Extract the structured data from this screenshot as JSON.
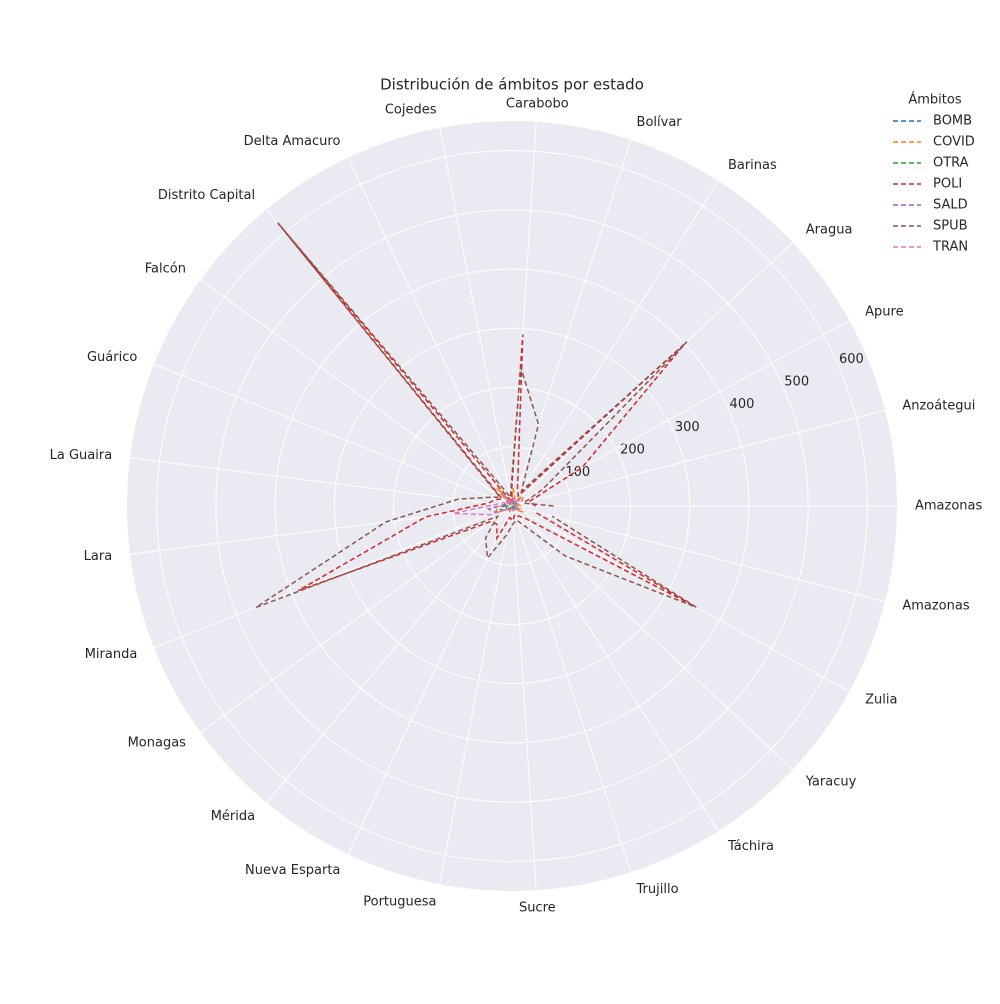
{
  "chart_data": {
    "type": "radar",
    "title": "Distribución de ámbitos por estado",
    "legend_title": "Ámbitos",
    "legend": "upper right",
    "grid": true,
    "categories": [
      "Amazonas",
      "Anzoátegui",
      "Apure",
      "Aragua",
      "Barinas",
      "Bolívar",
      "Carabobo",
      "Cojedes",
      "Delta Amacuro",
      "Distrito Capital",
      "Falcón",
      "Guárico",
      "La Guaira",
      "Lara",
      "Miranda",
      "Monagas",
      "Mérida",
      "Nueva Esparta",
      "Portuguesa",
      "Sucre",
      "Trujillo",
      "Táchira",
      "Yaracuy",
      "Zulia",
      "Amazonas"
    ],
    "rlim": [
      0,
      650
    ],
    "rticks": [
      100,
      200,
      300,
      400,
      500,
      600
    ],
    "series": [
      {
        "name": "BOMB",
        "color": "#1f77b4",
        "values": [
          10,
          5,
          8,
          15,
          5,
          10,
          15,
          3,
          5,
          30,
          5,
          8,
          10,
          20,
          20,
          8,
          5,
          5,
          5,
          5,
          3,
          5,
          5,
          15,
          10
        ]
      },
      {
        "name": "COVID",
        "color": "#ff7f0e",
        "values": [
          15,
          10,
          20,
          25,
          10,
          15,
          30,
          5,
          10,
          40,
          8,
          10,
          15,
          25,
          30,
          10,
          8,
          10,
          8,
          10,
          5,
          8,
          10,
          20,
          15
        ]
      },
      {
        "name": "OTRA",
        "color": "#2ca02c",
        "values": [
          5,
          3,
          5,
          8,
          3,
          5,
          8,
          2,
          3,
          15,
          3,
          5,
          5,
          10,
          10,
          5,
          3,
          3,
          3,
          3,
          2,
          3,
          3,
          8,
          5
        ]
      },
      {
        "name": "POLI",
        "color": "#d62728",
        "values": [
          40,
          30,
          135,
          400,
          20,
          30,
          290,
          10,
          15,
          620,
          20,
          30,
          40,
          147,
          388,
          45,
          40,
          60,
          20,
          25,
          15,
          20,
          30,
          350,
          40
        ]
      },
      {
        "name": "SALD",
        "color": "#9467bd",
        "values": [
          8,
          5,
          10,
          15,
          5,
          8,
          12,
          3,
          5,
          20,
          5,
          10,
          15,
          40,
          30,
          8,
          5,
          8,
          5,
          5,
          3,
          5,
          5,
          12,
          8
        ]
      },
      {
        "name": "SPUB",
        "color": "#8c564b",
        "values": [
          70,
          20,
          60,
          405,
          30,
          145,
          235,
          15,
          30,
          620,
          25,
          40,
          92,
          215,
          465,
          30,
          70,
          97,
          50,
          30,
          25,
          40,
          123,
          355,
          70
        ]
      },
      {
        "name": "TRAN",
        "color": "#e377c2",
        "values": [
          10,
          5,
          10,
          20,
          5,
          10,
          15,
          3,
          5,
          25,
          5,
          15,
          25,
          100,
          40,
          10,
          8,
          10,
          5,
          8,
          5,
          8,
          8,
          15,
          10
        ]
      }
    ]
  }
}
